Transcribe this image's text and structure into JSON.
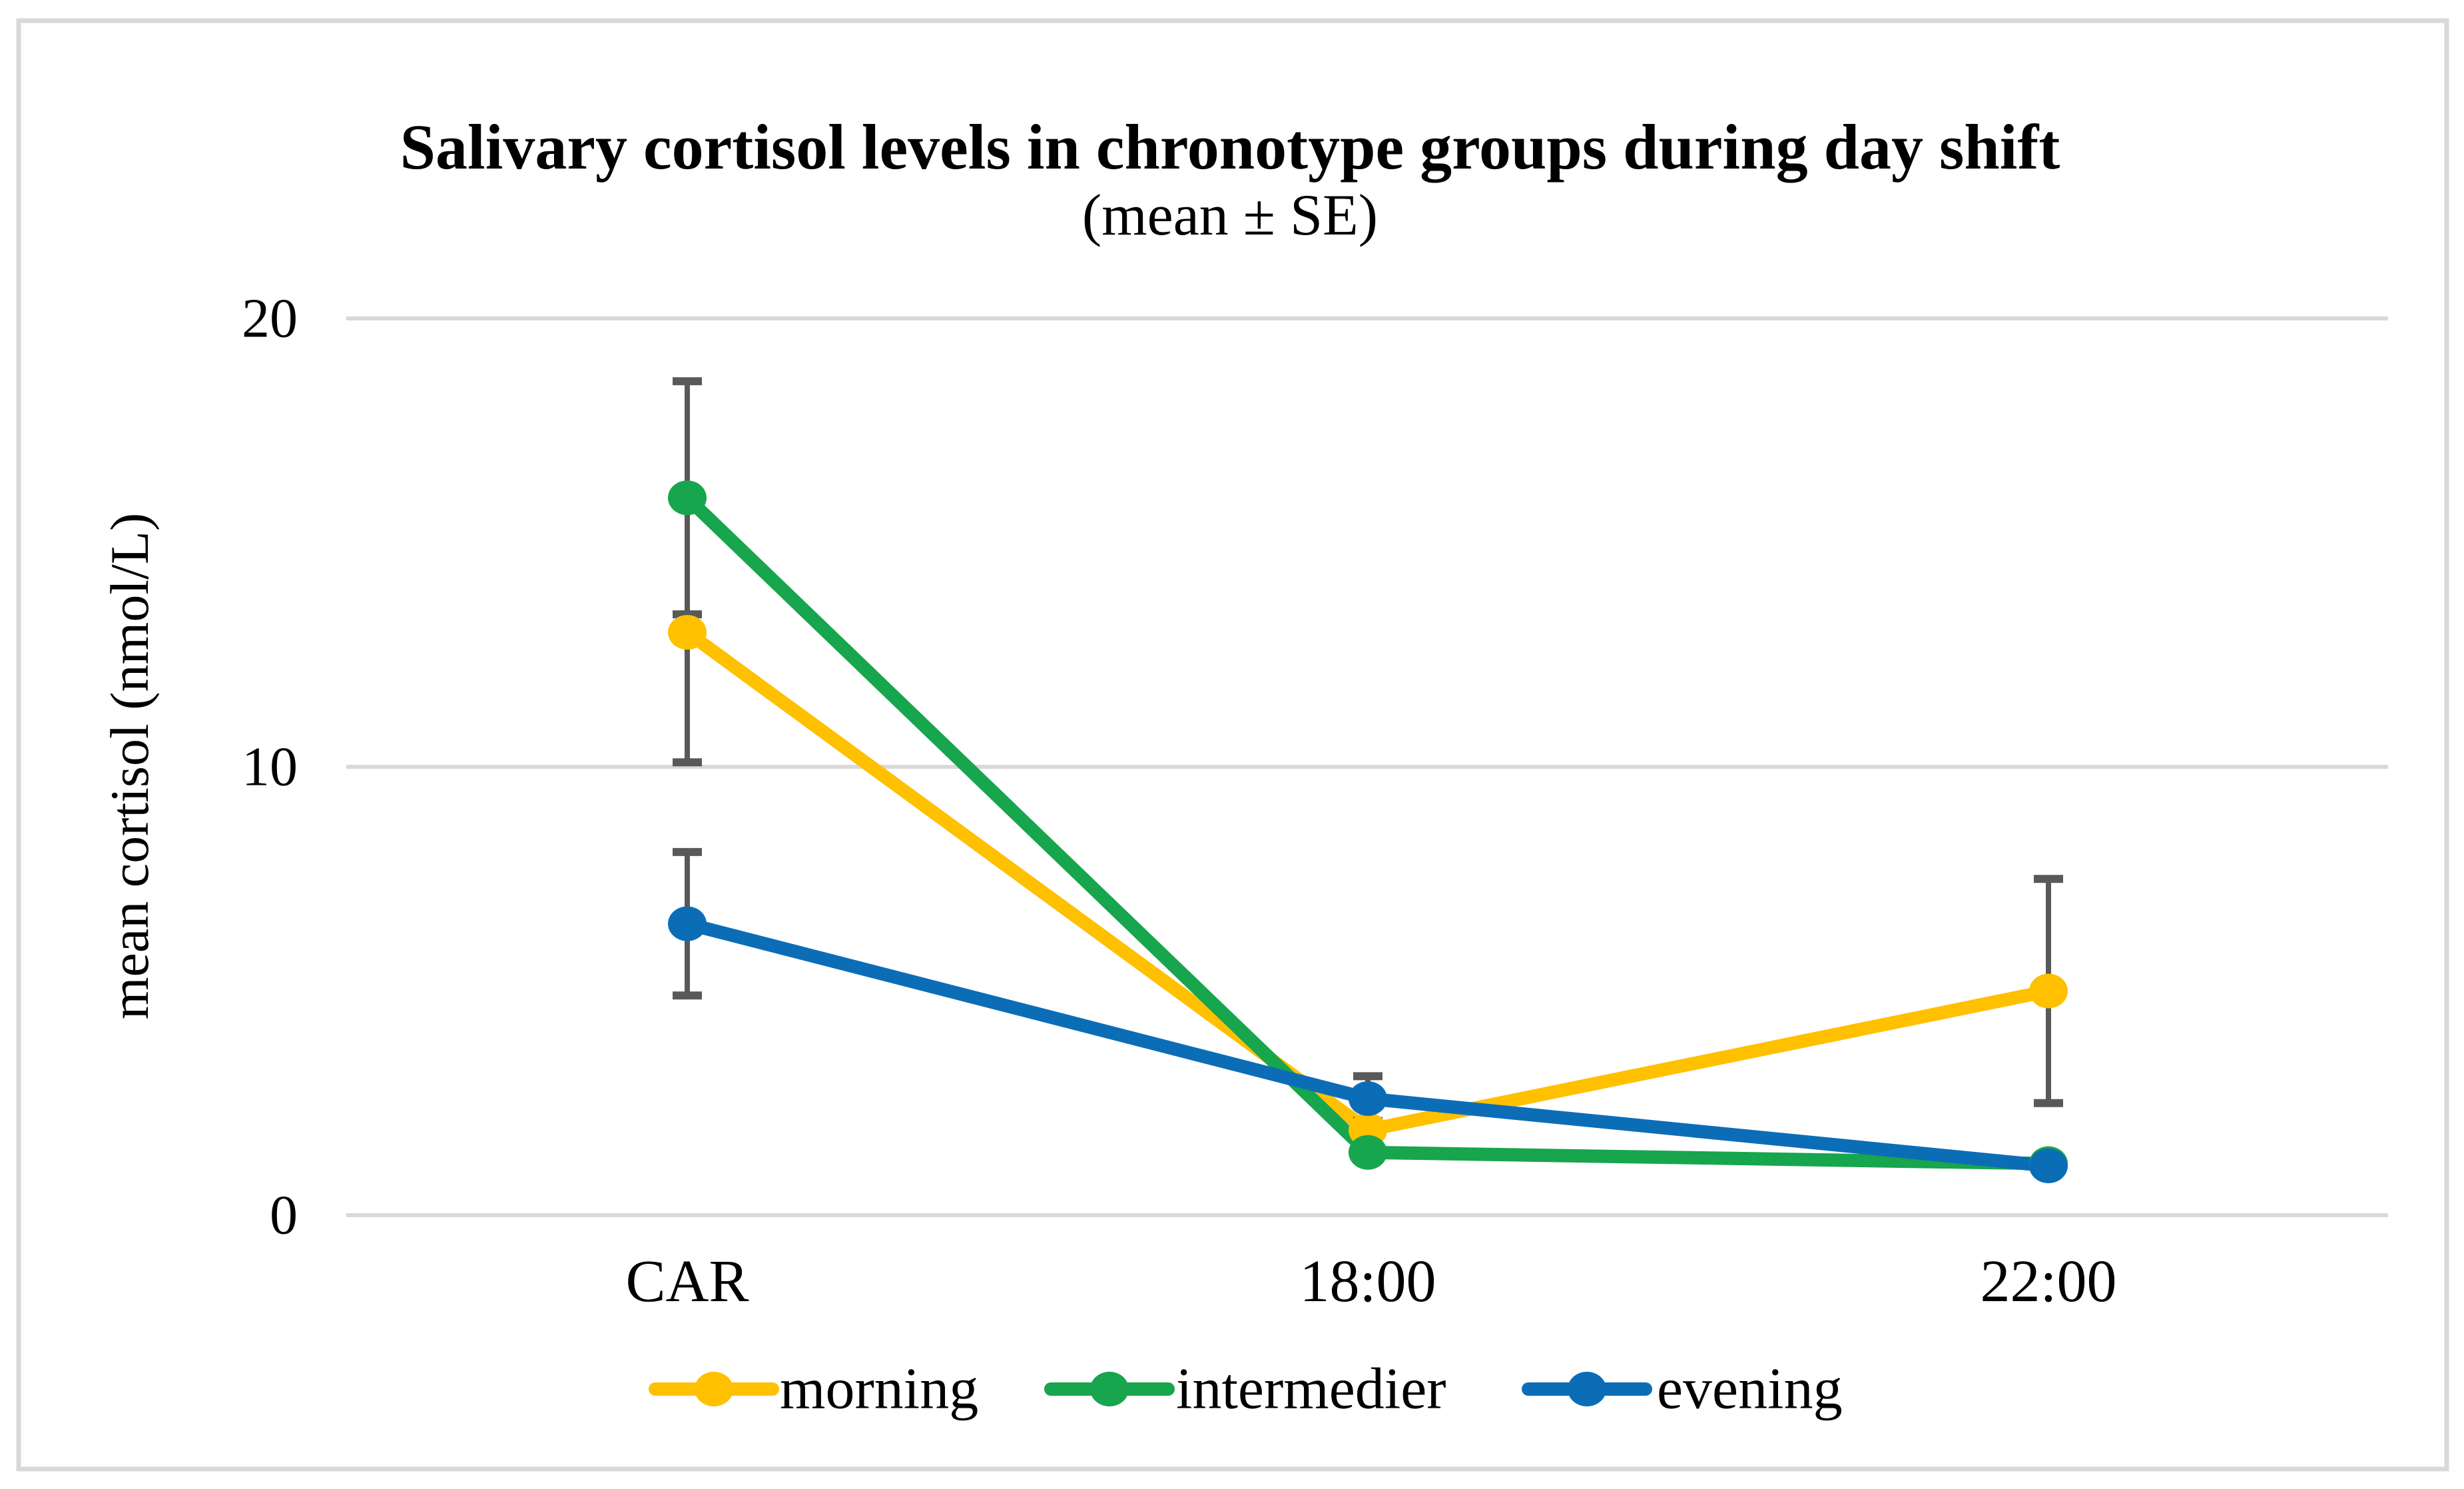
{
  "chart_data": {
    "type": "line",
    "title": "Salivary cortisol levels in chronotype groups during day shift",
    "subtitle": "(mean ± SE)",
    "ylabel": "mean cortisol (nmol/L)",
    "xlabel": "",
    "categories": [
      "CAR",
      "18:00",
      "22:00"
    ],
    "y_ticks": [
      0,
      10,
      20
    ],
    "y_tick_labels": [
      "0",
      "10",
      "20"
    ],
    "ylim": [
      0,
      20
    ],
    "grid": "horizontal-only",
    "legend_position": "bottom",
    "background_color": "#FFFFFF",
    "gridline_color": "#D9D9D9",
    "frame_color": "#D9D9D9",
    "error_bar_color": "#595959",
    "series": [
      {
        "name": "morning",
        "color": "#FFC000",
        "values": [
          13.0,
          1.9,
          5.0
        ],
        "se": [
          2.9,
          0,
          2.5
        ]
      },
      {
        "name": "intermedier",
        "color": "#17A54D",
        "values": [
          16.0,
          1.4,
          1.15
        ],
        "se": [
          2.6,
          0,
          0
        ]
      },
      {
        "name": "evening",
        "color": "#0C6DB7",
        "values": [
          6.5,
          2.6,
          1.1
        ],
        "se": [
          1.6,
          0.5,
          0
        ]
      }
    ]
  }
}
